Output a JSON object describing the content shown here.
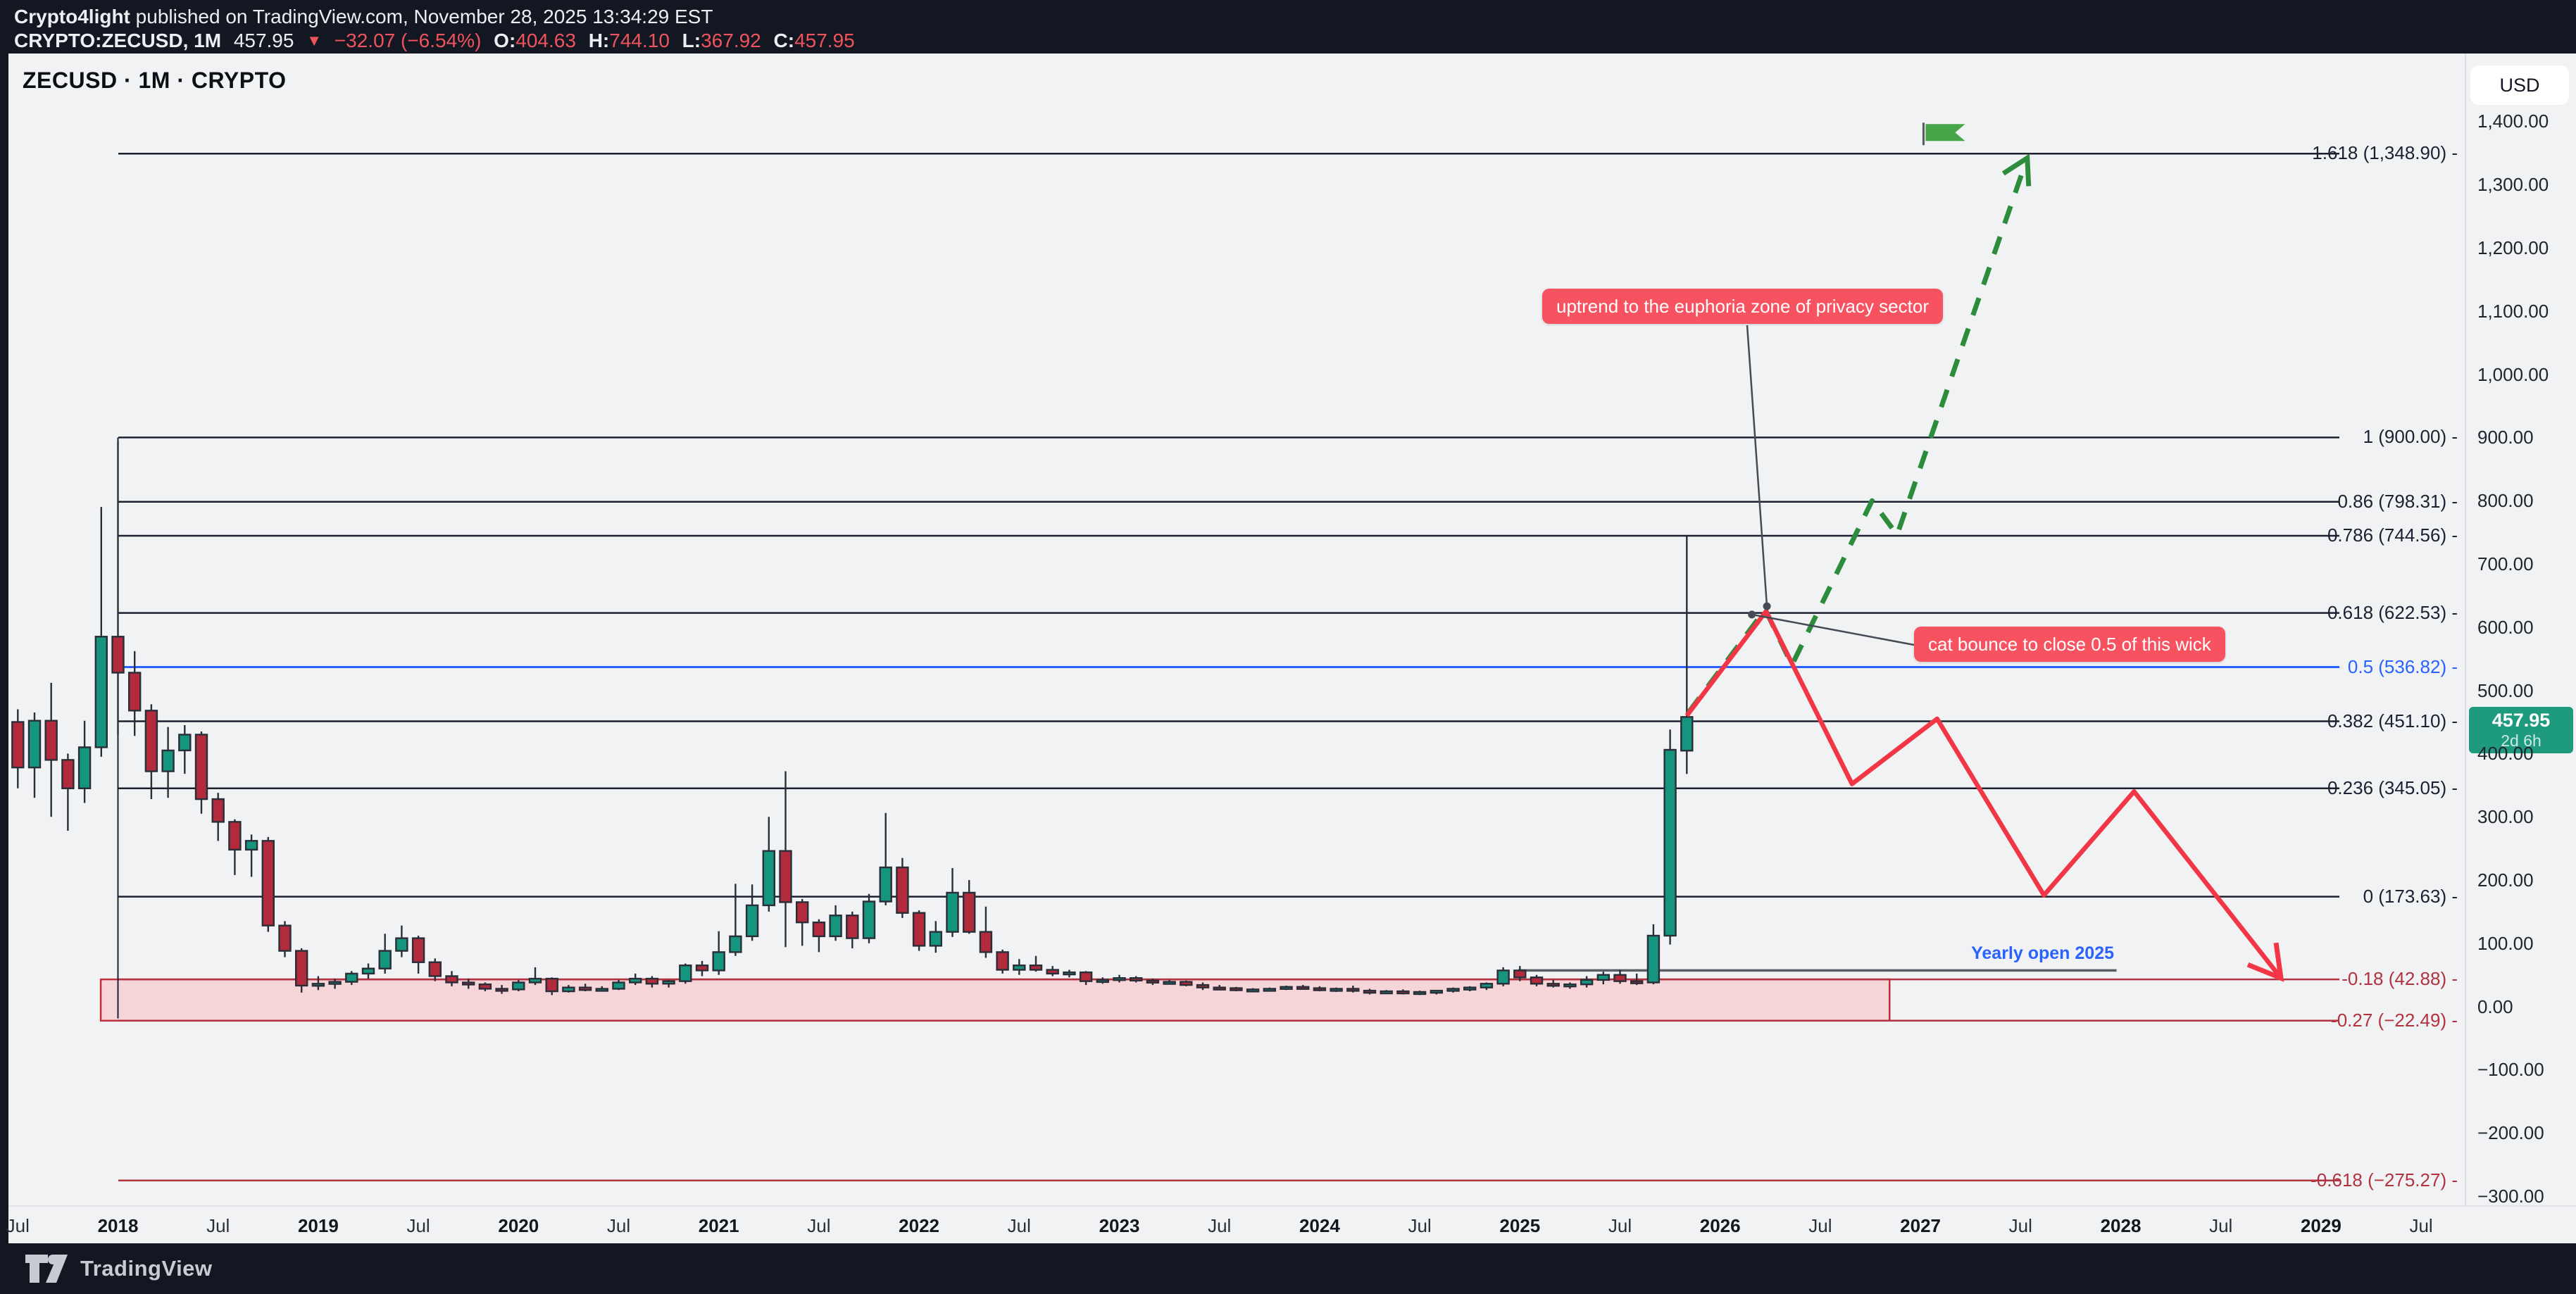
{
  "header": {
    "publisher": "Crypto4light",
    "publish_rest": " published on TradingView.com, November 28, 2025 13:34:29 EST",
    "symbol_line": "CRYPTO:ZECUSD, 1M",
    "last_price": "457.95",
    "direction_icon": "▼",
    "change_text": "−32.07 (−6.54%)",
    "ohlc": [
      {
        "label": "O:",
        "value": "404.63"
      },
      {
        "label": "H:",
        "value": "744.10"
      },
      {
        "label": "L:",
        "value": "367.92"
      },
      {
        "label": "C:",
        "value": "457.95"
      }
    ]
  },
  "chart": {
    "title": "ZECUSD · 1M · CRYPTO",
    "currency_button": "USD",
    "price_badge": {
      "price": "457.95",
      "countdown": "2d 6h"
    }
  },
  "annotations": {
    "uptrend_label": "uptrend to the euphoria zone of privacy sector",
    "cat_label": "cat bounce to close 0.5 of this wick",
    "yearly_open_label": "Yearly open 2025"
  },
  "brand": {
    "logo_text": "TradingView"
  },
  "colors": {
    "bg_dark": "#131722",
    "panel_bg": "#f1f2f4",
    "accent_red": "#f0535e",
    "candle_up": "#15947e",
    "candle_down": "#b12b3c",
    "candle_border": "#2a2e39",
    "fib_normal": "#1c2030",
    "fib_blue": "#2962ff",
    "fib_red": "#b2333f",
    "zone_fill": "#f6d5d9",
    "zone_border": "#c0303c",
    "proj_red": "#f23645",
    "proj_green": "#2d8c3c",
    "label_bg": "#f7525f",
    "badge_bg": "#1e9a7e",
    "flag_green": "#46a546",
    "connector": "#464a55",
    "yearly_line": "#5a5e66"
  },
  "price_axis": {
    "ticks": [
      {
        "label": "1,400.00",
        "value": 1400
      },
      {
        "label": "1,300.00",
        "value": 1300
      },
      {
        "label": "1,200.00",
        "value": 1200
      },
      {
        "label": "1,100.00",
        "value": 1100
      },
      {
        "label": "1,000.00",
        "value": 1000
      },
      {
        "label": "900.00",
        "value": 900
      },
      {
        "label": "800.00",
        "value": 800
      },
      {
        "label": "700.00",
        "value": 700
      },
      {
        "label": "600.00",
        "value": 600
      },
      {
        "label": "500.00",
        "value": 500
      },
      {
        "label": "400.00",
        "value": 400
      },
      {
        "label": "300.00",
        "value": 300
      },
      {
        "label": "200.00",
        "value": 200
      },
      {
        "label": "100.00",
        "value": 100
      },
      {
        "label": "0.00",
        "value": 0
      },
      {
        "label": "−100.00",
        "value": -100
      },
      {
        "label": "−200.00",
        "value": -200
      },
      {
        "label": "−300.00",
        "value": -300
      }
    ]
  },
  "time_axis": {
    "ticks": [
      {
        "label": "Jul",
        "t": "2017-07",
        "bold": false
      },
      {
        "label": "2018",
        "t": "2018-01",
        "bold": true
      },
      {
        "label": "Jul",
        "t": "2018-07",
        "bold": false
      },
      {
        "label": "2019",
        "t": "2019-01",
        "bold": true
      },
      {
        "label": "Jul",
        "t": "2019-07",
        "bold": false
      },
      {
        "label": "2020",
        "t": "2020-01",
        "bold": true
      },
      {
        "label": "Jul",
        "t": "2020-07",
        "bold": false
      },
      {
        "label": "2021",
        "t": "2021-01",
        "bold": true
      },
      {
        "label": "Jul",
        "t": "2021-07",
        "bold": false
      },
      {
        "label": "2022",
        "t": "2022-01",
        "bold": true
      },
      {
        "label": "Jul",
        "t": "2022-07",
        "bold": false
      },
      {
        "label": "2023",
        "t": "2023-01",
        "bold": true
      },
      {
        "label": "Jul",
        "t": "2023-07",
        "bold": false
      },
      {
        "label": "2024",
        "t": "2024-01",
        "bold": true
      },
      {
        "label": "Jul",
        "t": "2024-07",
        "bold": false
      },
      {
        "label": "2025",
        "t": "2025-01",
        "bold": true
      },
      {
        "label": "Jul",
        "t": "2025-07",
        "bold": false
      },
      {
        "label": "2026",
        "t": "2026-01",
        "bold": true
      },
      {
        "label": "Jul",
        "t": "2026-07",
        "bold": false
      },
      {
        "label": "2027",
        "t": "2027-01",
        "bold": true
      },
      {
        "label": "Jul",
        "t": "2027-07",
        "bold": false
      },
      {
        "label": "2028",
        "t": "2028-01",
        "bold": true
      },
      {
        "label": "Jul",
        "t": "2028-07",
        "bold": false
      },
      {
        "label": "2029",
        "t": "2029-01",
        "bold": true
      },
      {
        "label": "Jul",
        "t": "2029-07",
        "bold": false
      }
    ]
  },
  "chart_data": {
    "type": "candlestick",
    "symbol": "ZECUSD",
    "exchange": "CRYPTO",
    "timeframe": "1M",
    "currency": "USD",
    "ylim": [
      -300,
      1400
    ],
    "x_range": [
      "2017-07",
      "2029-07"
    ],
    "grid": false,
    "candles": [
      [
        "2017-07",
        450,
        470,
        345,
        378
      ],
      [
        "2017-08",
        378,
        465,
        330,
        452
      ],
      [
        "2017-09",
        452,
        512,
        300,
        390
      ],
      [
        "2017-10",
        390,
        400,
        278,
        345
      ],
      [
        "2017-11",
        345,
        452,
        322,
        410
      ],
      [
        "2017-12",
        410,
        790,
        395,
        585
      ],
      [
        "2018-01",
        585,
        894,
        430,
        528
      ],
      [
        "2018-02",
        528,
        562,
        428,
        468
      ],
      [
        "2018-03",
        468,
        478,
        328,
        372
      ],
      [
        "2018-04",
        372,
        442,
        330,
        405
      ],
      [
        "2018-05",
        405,
        445,
        368,
        430
      ],
      [
        "2018-06",
        430,
        435,
        305,
        328
      ],
      [
        "2018-07",
        328,
        338,
        262,
        292
      ],
      [
        "2018-08",
        292,
        296,
        208,
        248
      ],
      [
        "2018-09",
        248,
        272,
        205,
        262
      ],
      [
        "2018-10",
        262,
        268,
        118,
        128
      ],
      [
        "2018-11",
        128,
        135,
        78,
        88
      ],
      [
        "2018-12",
        88,
        92,
        22,
        33
      ],
      [
        "2019-01",
        33,
        48,
        26,
        36
      ],
      [
        "2019-02",
        36,
        44,
        28,
        39
      ],
      [
        "2019-03",
        39,
        56,
        34,
        52
      ],
      [
        "2019-04",
        52,
        68,
        44,
        60
      ],
      [
        "2019-05",
        60,
        115,
        52,
        88
      ],
      [
        "2019-06",
        88,
        128,
        78,
        108
      ],
      [
        "2019-07",
        108,
        112,
        52,
        70
      ],
      [
        "2019-08",
        70,
        76,
        40,
        48
      ],
      [
        "2019-09",
        48,
        56,
        32,
        38
      ],
      [
        "2019-10",
        38,
        44,
        28,
        35
      ],
      [
        "2019-11",
        35,
        38,
        24,
        28
      ],
      [
        "2019-12",
        28,
        34,
        20,
        27
      ],
      [
        "2020-01",
        27,
        42,
        24,
        38
      ],
      [
        "2020-02",
        38,
        62,
        34,
        44
      ],
      [
        "2020-03",
        44,
        46,
        18,
        24
      ],
      [
        "2020-04",
        24,
        34,
        22,
        30
      ],
      [
        "2020-05",
        30,
        36,
        24,
        26
      ],
      [
        "2020-06",
        26,
        32,
        24,
        28
      ],
      [
        "2020-07",
        28,
        42,
        26,
        38
      ],
      [
        "2020-08",
        38,
        52,
        34,
        44
      ],
      [
        "2020-09",
        44,
        48,
        30,
        36
      ],
      [
        "2020-10",
        36,
        42,
        30,
        40
      ],
      [
        "2020-11",
        40,
        68,
        36,
        65
      ],
      [
        "2020-12",
        65,
        72,
        48,
        57
      ],
      [
        "2021-01",
        57,
        119,
        50,
        86
      ],
      [
        "2021-02",
        86,
        194,
        80,
        111
      ],
      [
        "2021-03",
        111,
        193,
        104,
        160
      ],
      [
        "2021-04",
        160,
        300,
        150,
        246
      ],
      [
        "2021-05",
        246,
        372,
        94,
        165
      ],
      [
        "2021-06",
        165,
        170,
        96,
        133
      ],
      [
        "2021-07",
        133,
        138,
        86,
        111
      ],
      [
        "2021-08",
        111,
        160,
        104,
        144
      ],
      [
        "2021-09",
        144,
        150,
        92,
        108
      ],
      [
        "2021-10",
        108,
        178,
        100,
        166
      ],
      [
        "2021-11",
        166,
        306,
        160,
        220
      ],
      [
        "2021-12",
        220,
        235,
        140,
        148
      ],
      [
        "2022-01",
        148,
        152,
        88,
        96
      ],
      [
        "2022-02",
        96,
        135,
        85,
        118
      ],
      [
        "2022-03",
        118,
        219,
        110,
        180
      ],
      [
        "2022-04",
        180,
        200,
        115,
        118
      ],
      [
        "2022-05",
        118,
        158,
        77,
        86
      ],
      [
        "2022-06",
        86,
        90,
        52,
        58
      ],
      [
        "2022-07",
        58,
        75,
        50,
        65
      ],
      [
        "2022-08",
        65,
        80,
        55,
        58
      ],
      [
        "2022-09",
        58,
        64,
        48,
        52
      ],
      [
        "2022-10",
        52,
        58,
        46,
        54
      ],
      [
        "2022-11",
        54,
        56,
        34,
        40
      ],
      [
        "2022-12",
        40,
        46,
        36,
        42
      ],
      [
        "2023-01",
        42,
        50,
        38,
        45
      ],
      [
        "2023-02",
        45,
        48,
        38,
        41
      ],
      [
        "2023-03",
        41,
        44,
        34,
        38
      ],
      [
        "2023-04",
        38,
        42,
        35,
        39
      ],
      [
        "2023-05",
        39,
        41,
        32,
        34
      ],
      [
        "2023-06",
        34,
        38,
        26,
        30
      ],
      [
        "2023-07",
        30,
        34,
        27,
        29
      ],
      [
        "2023-08",
        29,
        31,
        24,
        26
      ],
      [
        "2023-09",
        26,
        29,
        24,
        27
      ],
      [
        "2023-10",
        27,
        30,
        25,
        28
      ],
      [
        "2023-11",
        28,
        33,
        26,
        31
      ],
      [
        "2023-12",
        31,
        34,
        27,
        29
      ],
      [
        "2024-01",
        29,
        32,
        24,
        26
      ],
      [
        "2024-02",
        26,
        30,
        23,
        28
      ],
      [
        "2024-03",
        28,
        33,
        22,
        25
      ],
      [
        "2024-04",
        25,
        28,
        19,
        22
      ],
      [
        "2024-05",
        22,
        26,
        20,
        24
      ],
      [
        "2024-06",
        24,
        27,
        19,
        21
      ],
      [
        "2024-07",
        21,
        25,
        18,
        23
      ],
      [
        "2024-08",
        23,
        26,
        19,
        25
      ],
      [
        "2024-09",
        25,
        30,
        22,
        28
      ],
      [
        "2024-10",
        28,
        32,
        24,
        30
      ],
      [
        "2024-11",
        30,
        38,
        26,
        36
      ],
      [
        "2024-12",
        36,
        62,
        32,
        57
      ],
      [
        "2025-01",
        57,
        64,
        40,
        46
      ],
      [
        "2025-02",
        46,
        50,
        32,
        36
      ],
      [
        "2025-03",
        36,
        42,
        30,
        33
      ],
      [
        "2025-04",
        33,
        38,
        28,
        35
      ],
      [
        "2025-05",
        35,
        48,
        30,
        42
      ],
      [
        "2025-06",
        42,
        55,
        35,
        50
      ],
      [
        "2025-07",
        50,
        58,
        36,
        40
      ],
      [
        "2025-08",
        40,
        52,
        34,
        38
      ],
      [
        "2025-09",
        38,
        130,
        35,
        112
      ],
      [
        "2025-10",
        112,
        438,
        98,
        406
      ],
      [
        "2025-11",
        404.63,
        744.1,
        367.92,
        457.95
      ]
    ],
    "fib_levels": [
      {
        "label": "1.618 (1,348.90)",
        "ratio": 1.618,
        "value": 1348.9,
        "style": "normal"
      },
      {
        "label": "1 (900.00)",
        "ratio": 1,
        "value": 900.0,
        "style": "normal"
      },
      {
        "label": "0.86 (798.31)",
        "ratio": 0.86,
        "value": 798.31,
        "style": "normal"
      },
      {
        "label": "0.786 (744.56)",
        "ratio": 0.786,
        "value": 744.56,
        "style": "normal"
      },
      {
        "label": "0.618 (622.53)",
        "ratio": 0.618,
        "value": 622.53,
        "style": "normal"
      },
      {
        "label": "0.5 (536.82)",
        "ratio": 0.5,
        "value": 536.82,
        "style": "blue"
      },
      {
        "label": "0.382 (451.10)",
        "ratio": 0.382,
        "value": 451.1,
        "style": "normal"
      },
      {
        "label": "0.236 (345.05)",
        "ratio": 0.236,
        "value": 345.05,
        "style": "normal"
      },
      {
        "label": "0 (173.63)",
        "ratio": 0,
        "value": 173.63,
        "style": "normal"
      },
      {
        "label": "-0.18 (42.88)",
        "ratio": -0.18,
        "value": 42.88,
        "style": "red"
      },
      {
        "label": "-0.27 (−22.49)",
        "ratio": -0.27,
        "value": -22.49,
        "style": "red"
      },
      {
        "label": "-0.618 (−275.27)",
        "ratio": -0.618,
        "value": -275.27,
        "style": "red"
      }
    ],
    "fib_anchor_vline": {
      "t": "2018-01",
      "from": 900,
      "to": -19
    },
    "support_zone": {
      "m1": -1.03,
      "m2": 106.15,
      "top": 42.88,
      "bottom": -22.49
    },
    "yearly_open": {
      "m1": 83.9,
      "m2": 119.75,
      "price": 57
    },
    "projections": {
      "bearish_path": [
        [
          94.0,
          460
        ],
        [
          98.75,
          625
        ],
        [
          103.9,
          352
        ],
        [
          109.0,
          455
        ],
        [
          115.4,
          176
        ],
        [
          120.8,
          340
        ],
        [
          129.6,
          45
        ]
      ],
      "bullish_dashed_path": [
        [
          94.1,
          465
        ],
        [
          98.7,
          628
        ],
        [
          100.3,
          540
        ],
        [
          105.1,
          800
        ],
        [
          106.6,
          746
        ],
        [
          114.4,
          1342
        ]
      ]
    },
    "markers": {
      "flag": {
        "m": 108.9,
        "price": 1369
      },
      "callout_dots": [
        {
          "m": 98.8,
          "price": 633
        },
        {
          "m": 97.9,
          "price": 620
        }
      ]
    }
  }
}
